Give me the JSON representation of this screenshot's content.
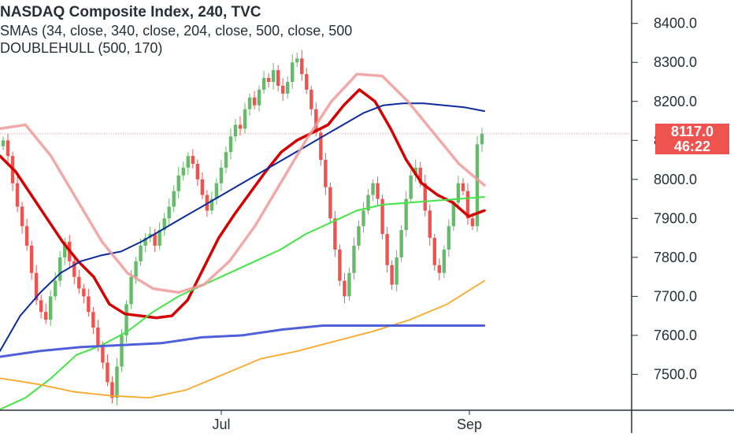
{
  "header": {
    "title": "NASDAQ Composite Index, 240, TVC",
    "sma_line": "SMAs (34, close, 340, close, 204, close, 500, close, 500",
    "hull_line": "DOUBLEHULL (500, 170)"
  },
  "price_scale": {
    "last_price": "8117.0",
    "countdown": "46:22",
    "last_price_color": "#ef5350"
  },
  "colors": {
    "up": "#66bb6a",
    "down": "#ef5350",
    "sma34": "#d50000",
    "sma340": "#0d2b9c",
    "sma204": "#44e544",
    "sma500_orange": "#ffa726",
    "sma500_blue": "#4f5fd9",
    "hull": "#ef9a9a"
  },
  "chart_data": {
    "type": "candlestick",
    "title": "NASDAQ Composite Index, 240, TVC",
    "x_tick_labels": [
      "Jul",
      "Sep"
    ],
    "y_ticks": [
      7500,
      7600,
      7700,
      7800,
      7900,
      8000,
      8100,
      8200,
      8300,
      8400
    ],
    "y_tick_labels": [
      "7500.0",
      "7600.0",
      "7700.0",
      "7800.0",
      "7900.0",
      "8000.0",
      "8100.0",
      "8200.0",
      "8300.0",
      "8400.0"
    ],
    "ylim": [
      7410,
      8460
    ],
    "last_price": 8117.0,
    "grid": false,
    "candles_close": [
      8100,
      8060,
      7990,
      7930,
      7880,
      7830,
      7760,
      7690,
      7660,
      7640,
      7700,
      7740,
      7800,
      7840,
      7790,
      7750,
      7720,
      7700,
      7660,
      7620,
      7570,
      7530,
      7480,
      7440,
      7520,
      7600,
      7680,
      7750,
      7790,
      7830,
      7850,
      7860,
      7830,
      7870,
      7900,
      7930,
      7970,
      8010,
      8030,
      8060,
      8040,
      8000,
      7960,
      7920,
      7950,
      7990,
      8030,
      8070,
      8110,
      8140,
      8130,
      8180,
      8210,
      8190,
      8230,
      8260,
      8250,
      8280,
      8240,
      8220,
      8250,
      8300,
      8310,
      8270,
      8230,
      8180,
      8120,
      8050,
      7980,
      7900,
      7820,
      7740,
      7700,
      7760,
      7830,
      7880,
      7920,
      7960,
      7990,
      7950,
      7860,
      7780,
      7730,
      7800,
      7870,
      7950,
      8010,
      8030,
      7990,
      7920,
      7850,
      7780,
      7760,
      7820,
      7880,
      7940,
      7990,
      7970,
      7900,
      7880,
      8090,
      8117
    ],
    "series": [
      {
        "name": "SMA 34",
        "color": "#d50000",
        "values": [
          8060,
          8020,
          7960,
          7900,
          7840,
          7790,
          7750,
          7680,
          7655,
          7650,
          7645,
          7650,
          7690,
          7770,
          7850,
          7910,
          7965,
          8020,
          8070,
          8100,
          8120,
          8140,
          8190,
          8230,
          8200,
          8130,
          8050,
          7990,
          7960,
          7940,
          7905,
          7920
        ]
      },
      {
        "name": "SMA 340",
        "color": "#0d2b9c",
        "values": [
          7560,
          7650,
          7710,
          7760,
          7790,
          7805,
          7815,
          7840,
          7870,
          7900,
          7930,
          7960,
          7990,
          8020,
          8050,
          8080,
          8110,
          8140,
          8170,
          8190,
          8195,
          8195,
          8190,
          8185,
          8175
        ]
      },
      {
        "name": "SMA 204",
        "color": "#44e544",
        "values": [
          7410,
          7440,
          7490,
          7550,
          7575,
          7610,
          7660,
          7700,
          7730,
          7760,
          7790,
          7820,
          7860,
          7890,
          7920,
          7935,
          7940,
          7945,
          7950,
          7955
        ]
      },
      {
        "name": "SMA 500",
        "color": "#ffa726",
        "values": [
          7490,
          7475,
          7455,
          7445,
          7440,
          7460,
          7500,
          7540,
          7560,
          7585,
          7610,
          7640,
          7680,
          7740
        ]
      },
      {
        "name": "SMA 500",
        "color": "#4f5fd9",
        "values": [
          7545,
          7560,
          7570,
          7575,
          7580,
          7595,
          7600,
          7615,
          7625,
          7625,
          7625,
          7625,
          7625
        ]
      },
      {
        "name": "DOUBLEHULL",
        "color": "#ef9a9a",
        "values": [
          8130,
          8140,
          8060,
          7950,
          7840,
          7760,
          7720,
          7710,
          7730,
          7790,
          7880,
          7990,
          8100,
          8200,
          8270,
          8265,
          8200,
          8120,
          8040,
          7985
        ]
      }
    ]
  }
}
